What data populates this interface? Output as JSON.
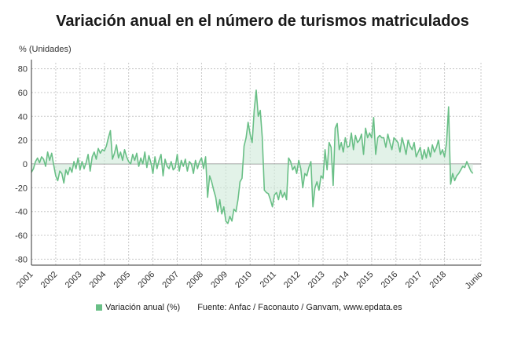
{
  "colors": {
    "series": "#69bf86",
    "fill": "#cfead8",
    "grid": "#c8c8c8",
    "axis": "#333333"
  },
  "chart_data": {
    "type": "area",
    "title": "Variación anual en el número de turismos matriculados",
    "ylabel": "% (Unidades)",
    "xlabel": "",
    "ylim": [
      -85,
      85
    ],
    "yticks": [
      80,
      60,
      40,
      20,
      0,
      -20,
      -40,
      -60,
      -80
    ],
    "xlim": [
      2001.0,
      2019.5
    ],
    "xticks": [
      {
        "label": "2001",
        "x": 2001.0
      },
      {
        "label": "2002",
        "x": 2002.0
      },
      {
        "label": "2003",
        "x": 2003.0
      },
      {
        "label": "2004",
        "x": 2004.0
      },
      {
        "label": "2005",
        "x": 2005.0
      },
      {
        "label": "2006",
        "x": 2006.0
      },
      {
        "label": "2007",
        "x": 2007.0
      },
      {
        "label": "2008",
        "x": 2008.0
      },
      {
        "label": "2009",
        "x": 2009.0
      },
      {
        "label": "2010",
        "x": 2010.0
      },
      {
        "label": "2011",
        "x": 2011.0
      },
      {
        "label": "2012",
        "x": 2012.0
      },
      {
        "label": "2013",
        "x": 2013.0
      },
      {
        "label": "2014",
        "x": 2014.0
      },
      {
        "label": "2015",
        "x": 2015.0
      },
      {
        "label": "2016",
        "x": 2016.0
      },
      {
        "label": "2017",
        "x": 2017.0
      },
      {
        "label": "2018",
        "x": 2018.0
      },
      {
        "label": "Junio",
        "x": 2019.5
      }
    ],
    "grid": true,
    "legend": "bottom",
    "series": [
      {
        "name": "Variación anual (%)",
        "start": 2001.0,
        "step_months": 1,
        "values": [
          -7,
          -4,
          2,
          5,
          1,
          6,
          4,
          -2,
          10,
          3,
          9,
          -1,
          -10,
          -14,
          -6,
          -8,
          -16,
          -5,
          -9,
          -3,
          -7,
          2,
          -4,
          5,
          -5,
          2,
          -4,
          1,
          8,
          -6,
          6,
          10,
          4,
          13,
          9,
          12,
          11,
          15,
          22,
          28,
          4,
          9,
          16,
          5,
          10,
          3,
          12,
          6,
          2,
          0,
          8,
          3,
          9,
          -2,
          5,
          0,
          10,
          -3,
          7,
          1,
          -8,
          6,
          -4,
          3,
          8,
          -10,
          4,
          -2,
          -4,
          2,
          -5,
          -3,
          8,
          -6,
          3,
          -2,
          4,
          -6,
          2,
          0,
          -8,
          3,
          -4,
          2,
          5,
          -4,
          6,
          -28,
          -10,
          -15,
          -22,
          -28,
          -40,
          -30,
          -42,
          -36,
          -48,
          -50,
          -44,
          -48,
          -38,
          -40,
          -30,
          -15,
          -12,
          15,
          22,
          35,
          25,
          18,
          45,
          62,
          40,
          45,
          22,
          -22,
          -24,
          -25,
          -30,
          -36,
          -26,
          -24,
          -30,
          -22,
          -28,
          -24,
          -30,
          5,
          2,
          -5,
          -2,
          -8,
          3,
          -4,
          -20,
          -8,
          -10,
          -3,
          2,
          -36,
          -20,
          -15,
          -22,
          -10,
          -12,
          12,
          -5,
          18,
          14,
          -18,
          30,
          34,
          12,
          18,
          10,
          22,
          14,
          15,
          26,
          12,
          24,
          18,
          20,
          25,
          8,
          30,
          22,
          26,
          22,
          39,
          8,
          22,
          24,
          22,
          22,
          14,
          25,
          18,
          12,
          22,
          20,
          18,
          10,
          22,
          16,
          8,
          20,
          15,
          12,
          18,
          6,
          10,
          14,
          4,
          12,
          5,
          14,
          6,
          16,
          10,
          14,
          20,
          8,
          12,
          6,
          18,
          48,
          -17,
          -8,
          -14,
          -10,
          -8,
          -5,
          -2,
          -3,
          2,
          -2,
          -6,
          -8
        ]
      }
    ]
  },
  "legend": {
    "label": "Variación anual (%)"
  },
  "source": "Fuente: Anfac / Faconauto / Ganvam, www.epdata.es"
}
